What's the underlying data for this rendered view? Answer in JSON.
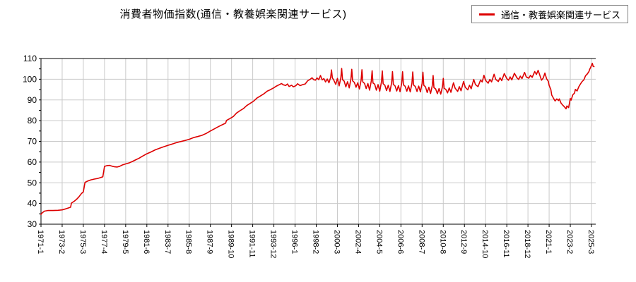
{
  "chart_data": {
    "type": "line",
    "title": "消費者物価指数(通信・教養娯楽関連サービス)",
    "xlabel": "",
    "ylabel": "",
    "ylim": [
      30,
      110
    ],
    "y_ticks": [
      30,
      40,
      50,
      60,
      70,
      80,
      90,
      100,
      110
    ],
    "x_start": "1971-1",
    "x_end": "2025-6",
    "x_tick_interval_months": 25,
    "x_tick_labels": [
      "1971-1",
      "1973-2",
      "1975-3",
      "1977-4",
      "1979-5",
      "1981-6",
      "1983-7",
      "1985-8",
      "1987-9",
      "1989-10",
      "1991-11",
      "1993-12",
      "1996-1",
      "1998-2",
      "2000-3",
      "2002-4",
      "2004-5",
      "2006-6",
      "2008-7",
      "2010-8",
      "2012-9",
      "2014-10",
      "2016-11",
      "2018-12",
      "2021-1",
      "2023-2",
      "2025-3"
    ],
    "grid": true,
    "legend_position": "top-right",
    "colors": {
      "line": "#dd0000",
      "grid": "#c9c9c9",
      "axis": "#000000",
      "background": "#ffffff"
    },
    "series": [
      {
        "name": "通信・教養娯楽関連サービス",
        "color": "#dd0000",
        "points": [
          [
            "1971-1",
            34.7
          ],
          [
            "1971-2",
            35.3
          ],
          [
            "1971-5",
            36.3
          ],
          [
            "1971-9",
            36.6
          ],
          [
            "1972-3",
            36.6
          ],
          [
            "1972-9",
            36.7
          ],
          [
            "1973-2",
            36.9
          ],
          [
            "1973-6",
            37.4
          ],
          [
            "1973-9",
            37.8
          ],
          [
            "1973-12",
            38.2
          ],
          [
            "1974-1",
            40.2
          ],
          [
            "1974-4",
            41.0
          ],
          [
            "1974-7",
            42.0
          ],
          [
            "1974-10",
            43.3
          ],
          [
            "1975-1",
            44.9
          ],
          [
            "1975-3",
            45.6
          ],
          [
            "1975-5",
            50.2
          ],
          [
            "1975-8",
            50.8
          ],
          [
            "1975-12",
            51.4
          ],
          [
            "1976-4",
            51.8
          ],
          [
            "1976-8",
            52.1
          ],
          [
            "1976-12",
            52.6
          ],
          [
            "1977-2",
            52.9
          ],
          [
            "1977-4",
            57.9
          ],
          [
            "1977-7",
            58.3
          ],
          [
            "1977-10",
            58.4
          ],
          [
            "1978-1",
            58.0
          ],
          [
            "1978-4",
            57.7
          ],
          [
            "1978-7",
            57.6
          ],
          [
            "1978-10",
            58.0
          ],
          [
            "1979-1",
            58.6
          ],
          [
            "1979-5",
            59.1
          ],
          [
            "1979-9",
            59.6
          ],
          [
            "1980-1",
            60.3
          ],
          [
            "1980-5",
            61.1
          ],
          [
            "1980-9",
            61.9
          ],
          [
            "1981-1",
            62.9
          ],
          [
            "1981-6",
            64.0
          ],
          [
            "1981-11",
            64.9
          ],
          [
            "1982-4",
            65.9
          ],
          [
            "1982-9",
            66.7
          ],
          [
            "1983-2",
            67.4
          ],
          [
            "1983-7",
            68.1
          ],
          [
            "1983-12",
            68.7
          ],
          [
            "1984-5",
            69.4
          ],
          [
            "1984-10",
            69.9
          ],
          [
            "1985-3",
            70.4
          ],
          [
            "1985-8",
            71.0
          ],
          [
            "1986-1",
            71.8
          ],
          [
            "1986-6",
            72.3
          ],
          [
            "1986-11",
            72.9
          ],
          [
            "1987-4",
            73.8
          ],
          [
            "1987-9",
            75.0
          ],
          [
            "1988-2",
            76.1
          ],
          [
            "1988-7",
            77.2
          ],
          [
            "1988-12",
            78.2
          ],
          [
            "1989-3",
            78.8
          ],
          [
            "1989-4",
            80.1
          ],
          [
            "1989-8",
            81.0
          ],
          [
            "1989-12",
            82.0
          ],
          [
            "1990-4",
            83.7
          ],
          [
            "1990-8",
            84.8
          ],
          [
            "1990-12",
            85.8
          ],
          [
            "1991-4",
            87.3
          ],
          [
            "1991-8",
            88.3
          ],
          [
            "1991-12",
            89.4
          ],
          [
            "1992-4",
            90.9
          ],
          [
            "1992-8",
            91.9
          ],
          [
            "1992-12",
            92.9
          ],
          [
            "1993-4",
            94.2
          ],
          [
            "1993-8",
            95.0
          ],
          [
            "1993-12",
            95.9
          ],
          [
            "1994-3",
            96.7
          ],
          [
            "1994-6",
            97.3
          ],
          [
            "1994-9",
            97.9
          ],
          [
            "1994-11",
            97.3
          ],
          [
            "1995-2",
            97.0
          ],
          [
            "1995-4",
            97.7
          ],
          [
            "1995-6",
            96.5
          ],
          [
            "1995-9",
            97.1
          ],
          [
            "1995-11",
            96.3
          ],
          [
            "1996-2",
            96.9
          ],
          [
            "1996-4",
            97.8
          ],
          [
            "1996-7",
            96.9
          ],
          [
            "1996-10",
            97.4
          ],
          [
            "1997-1",
            97.7
          ],
          [
            "1997-4",
            99.3
          ],
          [
            "1997-7",
            100.0
          ],
          [
            "1997-9",
            100.7
          ],
          [
            "1997-11",
            99.8
          ],
          [
            "1998-1",
            99.5
          ],
          [
            "1998-3",
            100.6
          ],
          [
            "1998-5",
            99.8
          ],
          [
            "1998-7",
            101.8
          ],
          [
            "1998-9",
            99.7
          ],
          [
            "1998-11",
            100.3
          ],
          [
            "1999-1",
            98.7
          ],
          [
            "1999-3",
            100.1
          ],
          [
            "1999-5",
            98.3
          ],
          [
            "1999-7",
            100.9
          ],
          [
            "1999-8",
            104.5
          ],
          [
            "1999-9",
            100.7
          ],
          [
            "1999-11",
            99.3
          ],
          [
            "2000-1",
            97.5
          ],
          [
            "2000-3",
            100.4
          ],
          [
            "2000-5",
            96.8
          ],
          [
            "2000-7",
            100.7
          ],
          [
            "2000-8",
            105.2
          ],
          [
            "2000-9",
            99.8
          ],
          [
            "2000-11",
            99.1
          ],
          [
            "2001-1",
            96.3
          ],
          [
            "2001-3",
            98.8
          ],
          [
            "2001-5",
            95.8
          ],
          [
            "2001-7",
            100.1
          ],
          [
            "2001-8",
            104.8
          ],
          [
            "2001-9",
            99.2
          ],
          [
            "2001-11",
            98.5
          ],
          [
            "2002-1",
            96.1
          ],
          [
            "2002-3",
            98.3
          ],
          [
            "2002-5",
            95.3
          ],
          [
            "2002-7",
            99.6
          ],
          [
            "2002-8",
            104.6
          ],
          [
            "2002-9",
            98.7
          ],
          [
            "2002-11",
            98.0
          ],
          [
            "2003-1",
            95.5
          ],
          [
            "2003-3",
            97.9
          ],
          [
            "2003-5",
            94.7
          ],
          [
            "2003-7",
            99.1
          ],
          [
            "2003-8",
            104.1
          ],
          [
            "2003-9",
            98.2
          ],
          [
            "2003-11",
            97.6
          ],
          [
            "2004-1",
            94.7
          ],
          [
            "2004-3",
            97.4
          ],
          [
            "2004-5",
            94.2
          ],
          [
            "2004-7",
            98.7
          ],
          [
            "2004-8",
            104.0
          ],
          [
            "2004-9",
            97.8
          ],
          [
            "2004-11",
            97.1
          ],
          [
            "2005-1",
            94.5
          ],
          [
            "2005-3",
            97.1
          ],
          [
            "2005-5",
            94.1
          ],
          [
            "2005-7",
            98.3
          ],
          [
            "2005-8",
            103.7
          ],
          [
            "2005-9",
            97.5
          ],
          [
            "2005-11",
            96.8
          ],
          [
            "2006-1",
            94.3
          ],
          [
            "2006-3",
            96.9
          ],
          [
            "2006-5",
            94.0
          ],
          [
            "2006-7",
            98.1
          ],
          [
            "2006-8",
            103.6
          ],
          [
            "2006-9",
            97.3
          ],
          [
            "2006-11",
            96.6
          ],
          [
            "2007-1",
            94.2
          ],
          [
            "2007-3",
            96.8
          ],
          [
            "2007-5",
            93.9
          ],
          [
            "2007-7",
            98.0
          ],
          [
            "2007-8",
            103.5
          ],
          [
            "2007-9",
            97.2
          ],
          [
            "2007-11",
            96.5
          ],
          [
            "2008-1",
            94.1
          ],
          [
            "2008-3",
            96.7
          ],
          [
            "2008-5",
            93.9
          ],
          [
            "2008-7",
            97.9
          ],
          [
            "2008-8",
            103.4
          ],
          [
            "2008-9",
            97.1
          ],
          [
            "2008-11",
            96.3
          ],
          [
            "2009-1",
            93.6
          ],
          [
            "2009-3",
            96.1
          ],
          [
            "2009-5",
            93.1
          ],
          [
            "2009-7",
            96.9
          ],
          [
            "2009-8",
            101.8
          ],
          [
            "2009-9",
            95.9
          ],
          [
            "2009-11",
            95.3
          ],
          [
            "2010-1",
            93.0
          ],
          [
            "2010-3",
            95.5
          ],
          [
            "2010-5",
            92.8
          ],
          [
            "2010-7",
            96.4
          ],
          [
            "2010-8",
            100.4
          ],
          [
            "2010-9",
            95.6
          ],
          [
            "2010-11",
            95.1
          ],
          [
            "2011-1",
            93.4
          ],
          [
            "2011-3",
            95.8
          ],
          [
            "2011-5",
            93.7
          ],
          [
            "2011-8",
            98.3
          ],
          [
            "2011-10",
            95.7
          ],
          [
            "2012-1",
            94.1
          ],
          [
            "2012-3",
            96.4
          ],
          [
            "2012-5",
            94.4
          ],
          [
            "2012-8",
            98.9
          ],
          [
            "2012-10",
            96.1
          ],
          [
            "2013-1",
            94.9
          ],
          [
            "2013-3",
            97.1
          ],
          [
            "2013-5",
            95.4
          ],
          [
            "2013-8",
            99.9
          ],
          [
            "2013-10",
            97.4
          ],
          [
            "2014-1",
            96.4
          ],
          [
            "2014-4",
            99.6
          ],
          [
            "2014-6",
            98.7
          ],
          [
            "2014-8",
            101.9
          ],
          [
            "2014-10",
            99.4
          ],
          [
            "2015-1",
            98.1
          ],
          [
            "2015-3",
            99.9
          ],
          [
            "2015-5",
            98.7
          ],
          [
            "2015-8",
            102.4
          ],
          [
            "2015-10",
            99.9
          ],
          [
            "2016-1",
            98.9
          ],
          [
            "2016-3",
            100.7
          ],
          [
            "2016-5",
            99.3
          ],
          [
            "2016-8",
            102.7
          ],
          [
            "2016-11",
            100.3
          ],
          [
            "2017-1",
            99.5
          ],
          [
            "2017-3",
            101.1
          ],
          [
            "2017-5",
            99.7
          ],
          [
            "2017-8",
            102.9
          ],
          [
            "2017-11",
            100.7
          ],
          [
            "2018-1",
            99.9
          ],
          [
            "2018-3",
            101.5
          ],
          [
            "2018-5",
            100.3
          ],
          [
            "2018-8",
            103.3
          ],
          [
            "2018-10",
            101.1
          ],
          [
            "2019-1",
            100.5
          ],
          [
            "2019-3",
            101.9
          ],
          [
            "2019-5",
            100.9
          ],
          [
            "2019-8",
            103.7
          ],
          [
            "2019-10",
            102.3
          ],
          [
            "2019-12",
            104.3
          ],
          [
            "2020-2",
            101.9
          ],
          [
            "2020-4",
            99.5
          ],
          [
            "2020-6",
            100.6
          ],
          [
            "2020-8",
            103.0
          ],
          [
            "2020-10",
            100.2
          ],
          [
            "2020-12",
            99.0
          ],
          [
            "2021-1",
            97.0
          ],
          [
            "2021-3",
            95.0
          ],
          [
            "2021-4",
            92.4
          ],
          [
            "2021-6",
            90.9
          ],
          [
            "2021-8",
            89.5
          ],
          [
            "2021-10",
            90.5
          ],
          [
            "2021-12",
            89.7
          ],
          [
            "2022-1",
            90.5
          ],
          [
            "2022-3",
            88.5
          ],
          [
            "2022-5",
            87.5
          ],
          [
            "2022-7",
            86.7
          ],
          [
            "2022-9",
            85.7
          ],
          [
            "2022-10",
            87.1
          ],
          [
            "2022-12",
            86.3
          ],
          [
            "2023-1",
            88.3
          ],
          [
            "2023-2",
            90.7
          ],
          [
            "2023-3",
            89.9
          ],
          [
            "2023-5",
            92.5
          ],
          [
            "2023-7",
            93.3
          ],
          [
            "2023-8",
            95.1
          ],
          [
            "2023-10",
            94.3
          ],
          [
            "2023-12",
            96.3
          ],
          [
            "2024-2",
            97.7
          ],
          [
            "2024-4",
            98.9
          ],
          [
            "2024-6",
            99.7
          ],
          [
            "2024-8",
            101.7
          ],
          [
            "2024-10",
            102.5
          ],
          [
            "2024-12",
            103.7
          ],
          [
            "2025-1",
            104.9
          ],
          [
            "2025-2",
            105.7
          ],
          [
            "2025-3",
            106.7
          ],
          [
            "2025-4",
            107.7
          ],
          [
            "2025-5",
            106.2
          ],
          [
            "2025-6",
            106.1
          ]
        ]
      }
    ]
  }
}
